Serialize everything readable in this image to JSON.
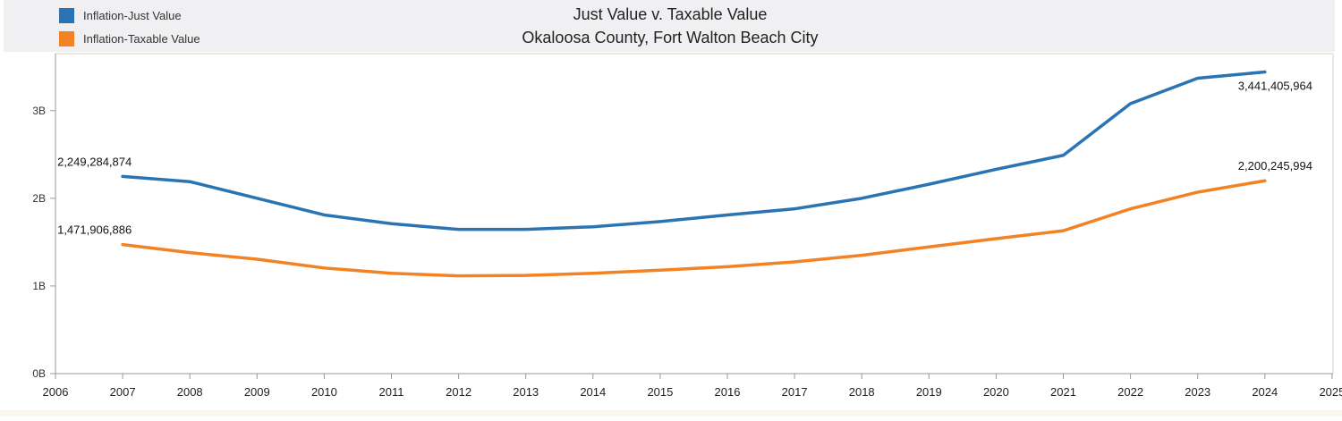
{
  "chart_data": {
    "type": "line",
    "title": "Just Value v. Taxable Value",
    "subtitle": "Okaloosa County, Fort Walton Beach City",
    "xlabel": "",
    "ylabel": "",
    "x": [
      2007,
      2008,
      2009,
      2010,
      2011,
      2012,
      2013,
      2014,
      2015,
      2016,
      2017,
      2018,
      2019,
      2020,
      2021,
      2022,
      2023,
      2024
    ],
    "x_ticks": [
      "2006",
      "2007",
      "2008",
      "2009",
      "2010",
      "2011",
      "2012",
      "2013",
      "2014",
      "2015",
      "2016",
      "2017",
      "2018",
      "2019",
      "2020",
      "2021",
      "2022",
      "2023",
      "2024",
      "2025"
    ],
    "xlim": [
      2006,
      2025
    ],
    "y_ticks": [
      "0B",
      "1B",
      "2B",
      "3B"
    ],
    "ylim": [
      0,
      3.65
    ],
    "grid": false,
    "legend_position": "top-left",
    "series": [
      {
        "name": "Inflation-Just Value",
        "color": "#2a74b4",
        "values": [
          2.249,
          2.19,
          2.0,
          1.81,
          1.71,
          1.645,
          1.645,
          1.675,
          1.735,
          1.81,
          1.88,
          2.0,
          2.16,
          2.33,
          2.49,
          3.08,
          3.37,
          3.441
        ],
        "labels": [
          {
            "text": "2,249,284,874",
            "x": 2007,
            "y": 2.249,
            "position": "above"
          },
          {
            "text": "3,441,405,964",
            "x": 2024,
            "y": 3.441,
            "position": "below"
          }
        ]
      },
      {
        "name": "Inflation-Taxable Value",
        "color": "#f28222",
        "values": [
          1.472,
          1.38,
          1.305,
          1.205,
          1.145,
          1.115,
          1.12,
          1.145,
          1.18,
          1.22,
          1.275,
          1.35,
          1.445,
          1.54,
          1.63,
          1.88,
          2.07,
          2.2
        ],
        "labels": [
          {
            "text": "1,471,906,886",
            "x": 2007,
            "y": 1.472,
            "position": "above"
          },
          {
            "text": "2,200,245,994",
            "x": 2024,
            "y": 2.2,
            "position": "above"
          }
        ]
      }
    ]
  }
}
